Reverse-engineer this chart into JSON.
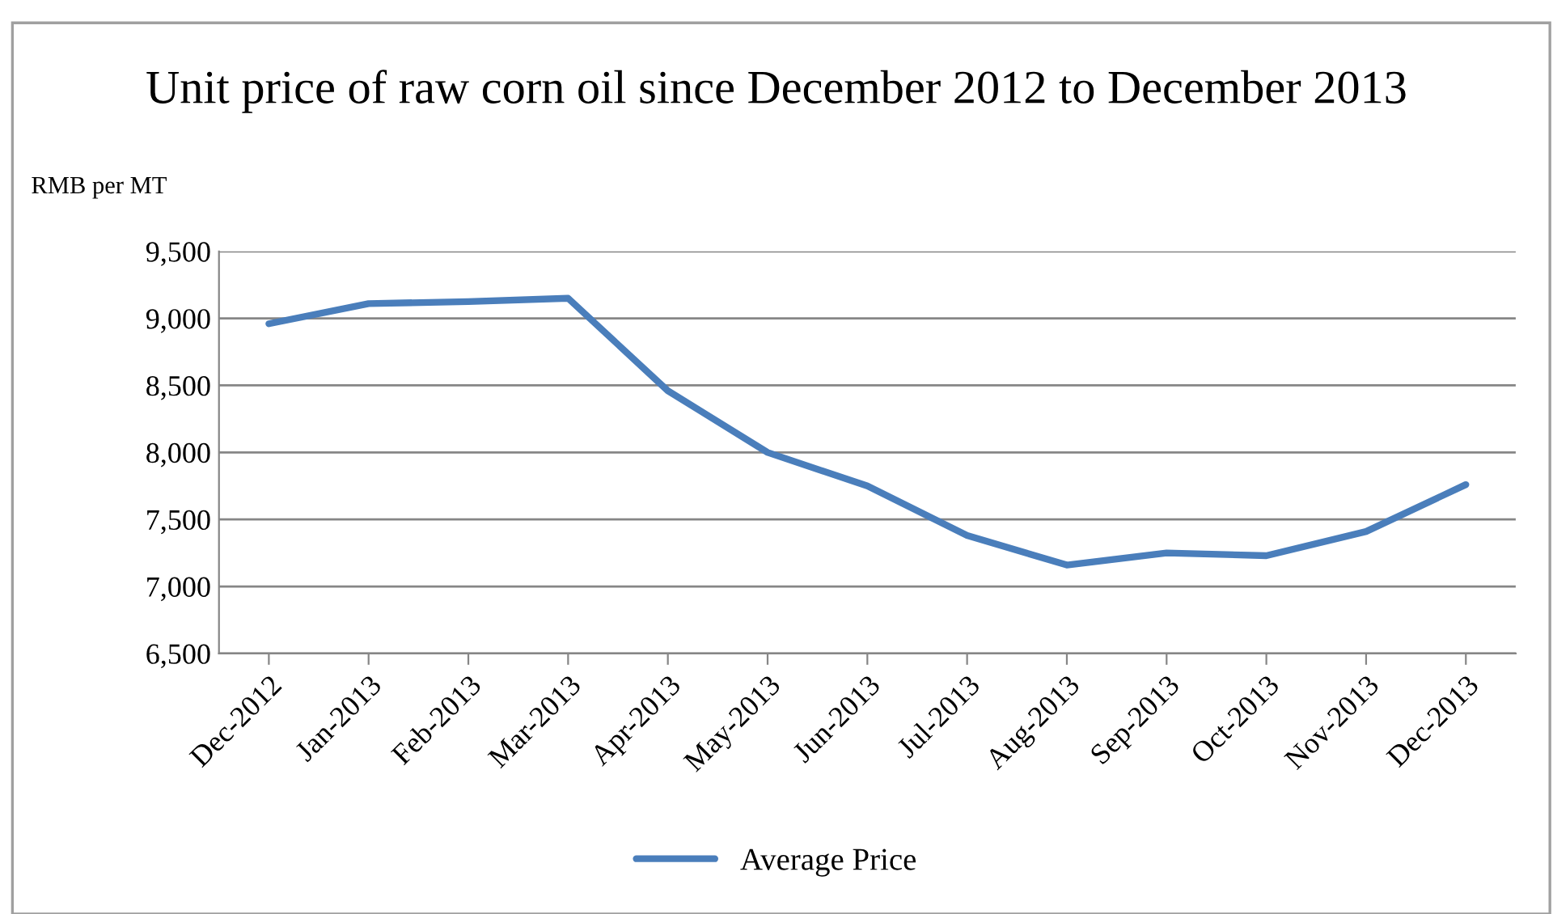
{
  "chart_data": {
    "type": "line",
    "title": "Unit price of raw corn oil since December 2012 to December 2013",
    "ylabel": "RMB per MT",
    "categories": [
      "Dec-2012",
      "Jan-2013",
      "Feb-2013",
      "Mar-2013",
      "Apr-2013",
      "May-2013",
      "Jun-2013",
      "Jul-2013",
      "Aug-2013",
      "Sep-2013",
      "Oct-2013",
      "Nov-2013",
      "Dec-2013"
    ],
    "series": [
      {
        "name": "Average Price",
        "color": "#4a7ebb",
        "values": [
          8960,
          9110,
          9125,
          9150,
          8460,
          8000,
          7750,
          7380,
          7160,
          7250,
          7230,
          7410,
          7760
        ]
      }
    ],
    "ylim": [
      6500,
      9500
    ],
    "yticks": [
      {
        "value": 6500,
        "label": "6,500"
      },
      {
        "value": 7000,
        "label": "7,000"
      },
      {
        "value": 7500,
        "label": "7,500"
      },
      {
        "value": 8000,
        "label": "8,000"
      },
      {
        "value": 8500,
        "label": "8,500"
      },
      {
        "value": 9000,
        "label": "9,000"
      },
      {
        "value": 9500,
        "label": "9,500"
      }
    ],
    "grid": "y",
    "legend": "bottom",
    "marker": "none",
    "line_style": "solid"
  }
}
